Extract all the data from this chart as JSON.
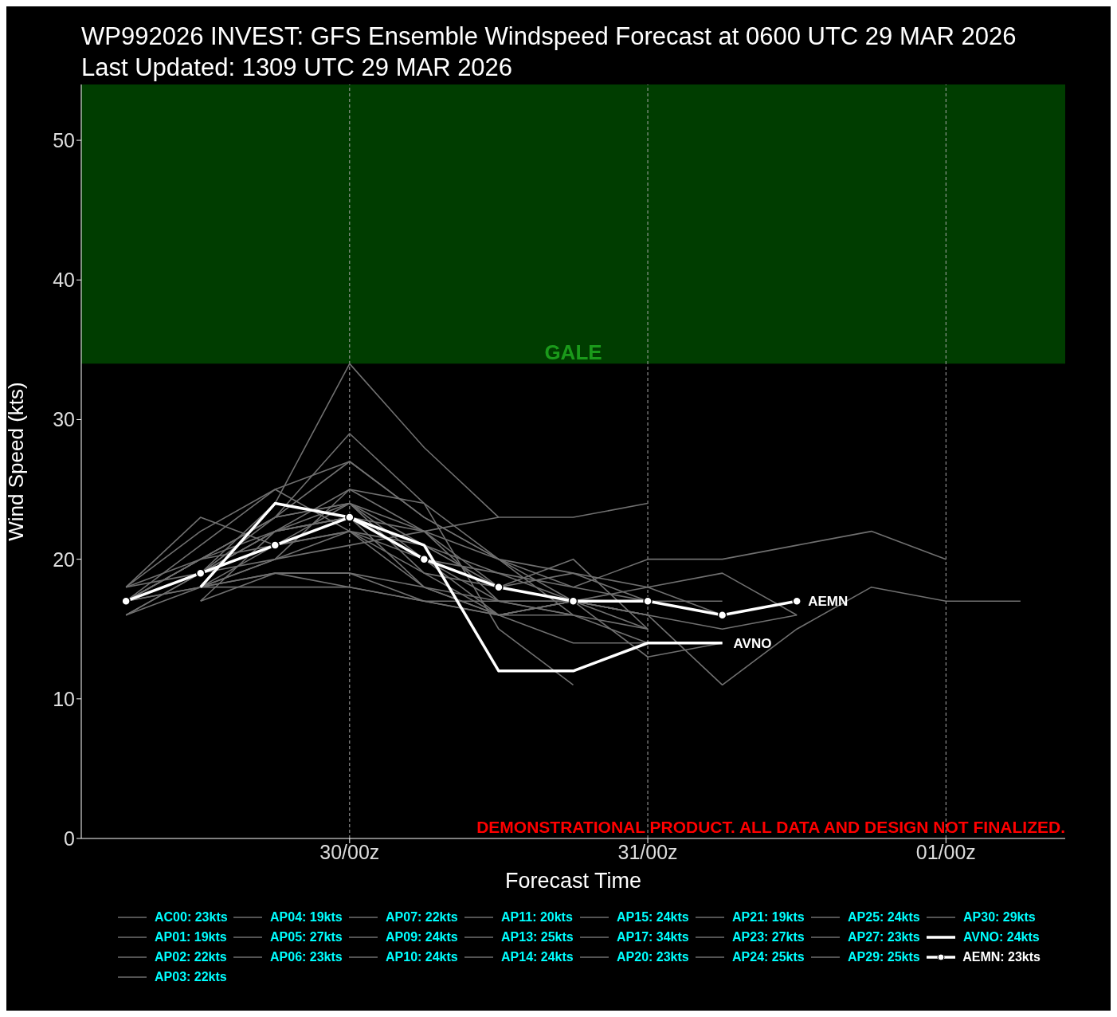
{
  "chart_data": {
    "type": "line",
    "title": "WP992026 INVEST: GFS Ensemble Windspeed Forecast at 0600 UTC 29 MAR 2026",
    "subtitle": "Last Updated: 1309 UTC 29 MAR 2026",
    "xlabel": "Forecast Time",
    "ylabel": "Wind Speed (kts)",
    "categories": [
      null,
      null,
      null,
      "30/00z",
      null,
      null,
      null,
      "31/00z",
      null,
      null,
      null,
      "01/00z",
      null
    ],
    "ylim": [
      0,
      54
    ],
    "yticks": [
      0,
      10,
      20,
      30,
      40,
      50
    ],
    "grid": "x",
    "legend": "bottom",
    "bands": [
      {
        "axis": "y",
        "from": 34,
        "to": 54,
        "label": "GALE",
        "color": "#003d00"
      }
    ],
    "annotations": [
      "AVNO",
      "AEMN",
      "DEMONSTRATIONAL PRODUCT. ALL DATA AND DESIGN NOT FINALIZED."
    ],
    "series": [
      {
        "name": "AC00: 23kts",
        "color": "#707070",
        "values": [
          17,
          19,
          22,
          23,
          21,
          19,
          17,
          16,
          null,
          null,
          null,
          null,
          null
        ]
      },
      {
        "name": "AP01: 19kts",
        "color": "#707070",
        "values": [
          16,
          18,
          19,
          19,
          18,
          17,
          16,
          null,
          null,
          null,
          null,
          null,
          null
        ]
      },
      {
        "name": "AP02: 22kts",
        "color": "#707070",
        "values": [
          18,
          20,
          21,
          22,
          20,
          19,
          18,
          20,
          20,
          21,
          22,
          20,
          null
        ]
      },
      {
        "name": "AP03: 22kts",
        "color": "#707070",
        "values": [
          null,
          18,
          20,
          22,
          21,
          18,
          17,
          15,
          null,
          null,
          null,
          null,
          null
        ]
      },
      {
        "name": "AP04: 19kts",
        "color": "#707070",
        "values": [
          null,
          17,
          19,
          19,
          17,
          16,
          16,
          null,
          null,
          null,
          null,
          null,
          null
        ]
      },
      {
        "name": "AP05: 27kts",
        "color": "#707070",
        "values": [
          18,
          22,
          25,
          27,
          23,
          20,
          17,
          16,
          null,
          null,
          null,
          null,
          null
        ]
      },
      {
        "name": "AP06: 23kts",
        "color": "#707070",
        "values": [
          17,
          20,
          22,
          23,
          22,
          18,
          17,
          17,
          16,
          null,
          null,
          null,
          null
        ]
      },
      {
        "name": "AP07: 22kts",
        "color": "#707070",
        "values": [
          18,
          23,
          21,
          22,
          19,
          18,
          19,
          18,
          19,
          16,
          null,
          null,
          null
        ]
      },
      {
        "name": "AP09: 24kts",
        "color": "#707070",
        "values": [
          17,
          20,
          23,
          24,
          22,
          17,
          16,
          14,
          14,
          null,
          null,
          null,
          null
        ]
      },
      {
        "name": "AP10: 24kts",
        "color": "#707070",
        "values": [
          null,
          18,
          21,
          24,
          20,
          16,
          14,
          14,
          null,
          null,
          null,
          null,
          null
        ]
      },
      {
        "name": "AP11: 20kts",
        "color": "#707070",
        "values": [
          17,
          18,
          18,
          18,
          17,
          17,
          17,
          null,
          null,
          null,
          null,
          null,
          null
        ]
      },
      {
        "name": "AP13: 25kts",
        "color": "#707070",
        "values": [
          17,
          21,
          25,
          22,
          18,
          16,
          17,
          null,
          null,
          null,
          null,
          null,
          null
        ]
      },
      {
        "name": "AP14: 24kts",
        "color": "#707070",
        "values": [
          16,
          19,
          22,
          24,
          21,
          18,
          20,
          15,
          null,
          null,
          null,
          null,
          null
        ]
      },
      {
        "name": "AP15: 24kts",
        "color": "#707070",
        "values": [
          null,
          18,
          20,
          21,
          22,
          23,
          23,
          24,
          null,
          null,
          null,
          null,
          null
        ]
      },
      {
        "name": "AP17: 34kts",
        "color": "#707070",
        "values": [
          17,
          19,
          24,
          34,
          28,
          23,
          null,
          null,
          null,
          null,
          null,
          null,
          null
        ]
      },
      {
        "name": "AP20: 23kts",
        "color": "#707070",
        "values": [
          18,
          19,
          22,
          23,
          18,
          16,
          17,
          18,
          16,
          null,
          null,
          null,
          null
        ]
      },
      {
        "name": "AP21: 19kts",
        "color": "#707070",
        "values": [
          17,
          18,
          19,
          18,
          17,
          16,
          17,
          16,
          11,
          15,
          18,
          17,
          17
        ]
      },
      {
        "name": "AP23: 27kts",
        "color": "#707070",
        "values": [
          17,
          20,
          23,
          27,
          23,
          20,
          19,
          17,
          17,
          null,
          null,
          null,
          null
        ]
      },
      {
        "name": "AP24: 25kts",
        "color": "#707070",
        "values": [
          null,
          17,
          22,
          25,
          24,
          15,
          11,
          null,
          null,
          null,
          null,
          null,
          null
        ]
      },
      {
        "name": "AP25: 24kts",
        "color": "#707070",
        "values": [
          16,
          19,
          23,
          24,
          19,
          16,
          17,
          16,
          15,
          16,
          null,
          null,
          null
        ]
      },
      {
        "name": "AP27: 23kts",
        "color": "#707070",
        "values": [
          17,
          19,
          21,
          23,
          20,
          17,
          17,
          13,
          14,
          null,
          null,
          null,
          null
        ]
      },
      {
        "name": "AP29: 25kts",
        "color": "#707070",
        "values": [
          null,
          19,
          20,
          25,
          22,
          20,
          16,
          15,
          null,
          null,
          null,
          null,
          null
        ]
      },
      {
        "name": "AP30: 29kts",
        "color": "#707070",
        "values": [
          17,
          20,
          23,
          29,
          24,
          20,
          18,
          17,
          null,
          null,
          null,
          null,
          null
        ]
      },
      {
        "name": "AVNO: 24kts",
        "color": "#ffffff",
        "values": [
          null,
          18,
          24,
          23,
          21,
          12,
          12,
          14,
          14,
          null,
          null,
          null,
          null
        ]
      },
      {
        "name": "AEMN: 23kts",
        "color": "#ffffff",
        "marker": "circle",
        "values": [
          17,
          19,
          21,
          23,
          20,
          18,
          17,
          17,
          16,
          17,
          null,
          null,
          null
        ]
      }
    ]
  }
}
